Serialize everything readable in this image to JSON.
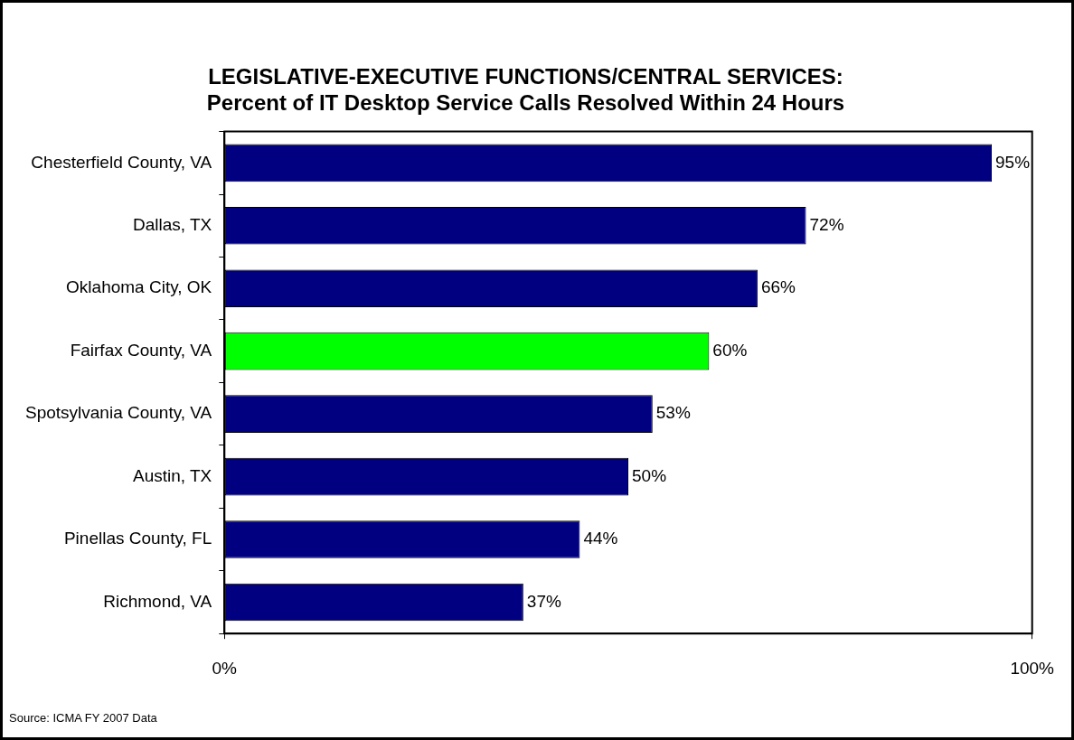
{
  "chart_data": {
    "type": "bar",
    "orientation": "horizontal",
    "title": "LEGISLATIVE-EXECUTIVE FUNCTIONS/CENTRAL SERVICES:",
    "subtitle": "Percent of IT Desktop Service Calls Resolved Within 24 Hours",
    "categories": [
      "Chesterfield County, VA",
      "Dallas, TX",
      "Oklahoma City, OK",
      "Fairfax County, VA",
      "Spotsylvania County, VA",
      "Austin, TX",
      "Pinellas County, FL",
      "Richmond, VA"
    ],
    "values": [
      95,
      72,
      66,
      60,
      53,
      50,
      44,
      37
    ],
    "value_labels": [
      "95%",
      "72%",
      "66%",
      "60%",
      "53%",
      "50%",
      "44%",
      "37%"
    ],
    "colors": [
      "#000080",
      "#000080",
      "#000080",
      "#00ff00",
      "#000080",
      "#000080",
      "#000080",
      "#000080"
    ],
    "xlim": [
      0,
      100
    ],
    "xticks": [
      {
        "value": 0,
        "label": "0%"
      },
      {
        "value": 100,
        "label": "100%"
      }
    ],
    "legend": false,
    "annotations": [
      "Source: ICMA FY 2007 Data"
    ]
  }
}
